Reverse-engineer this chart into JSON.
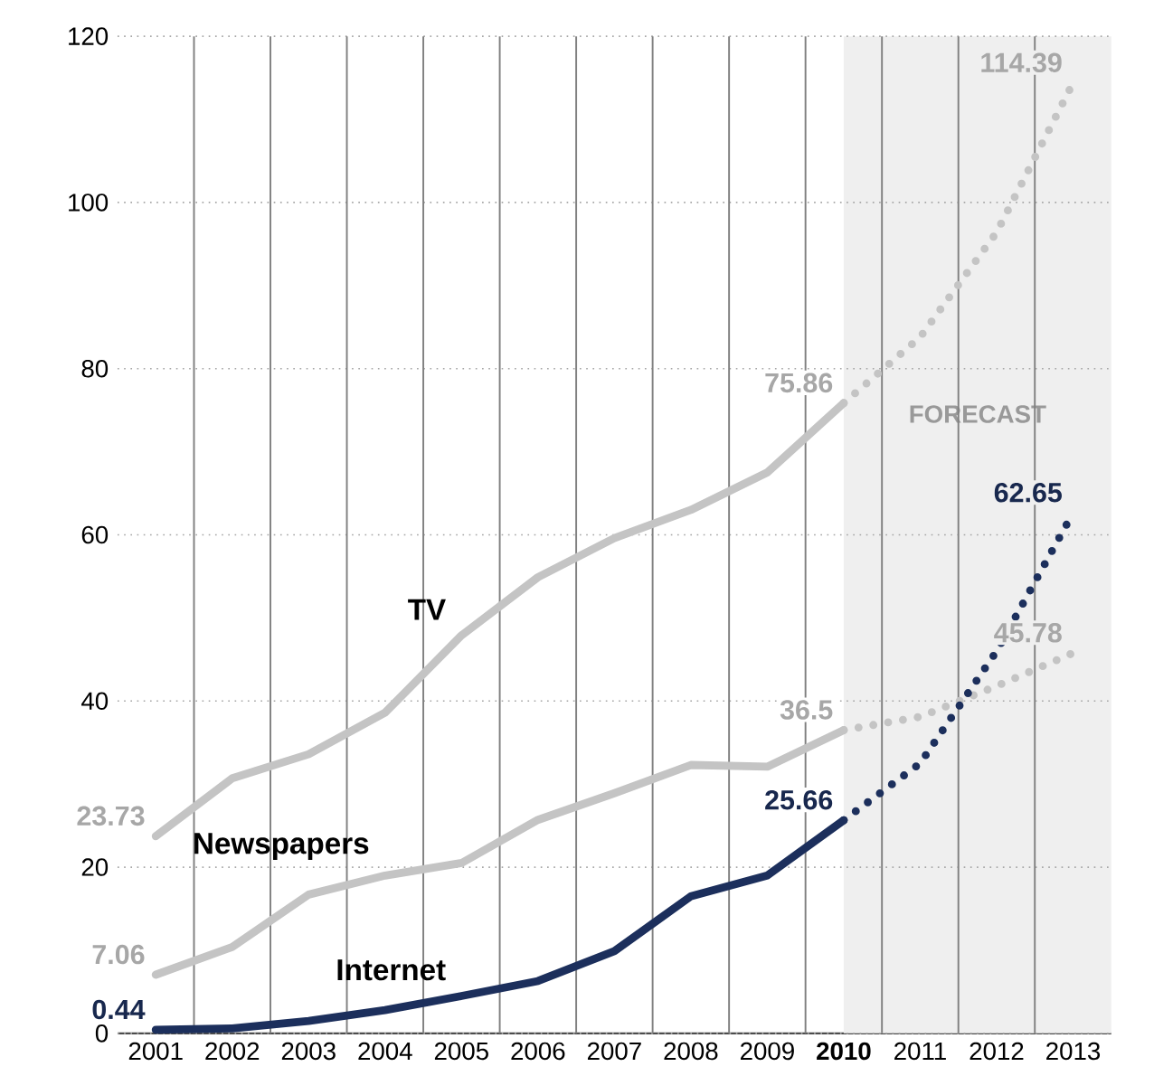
{
  "chart_data": {
    "type": "line",
    "x": [
      2001,
      2002,
      2003,
      2004,
      2005,
      2006,
      2007,
      2008,
      2009,
      2010,
      2011,
      2012,
      2013
    ],
    "xlim": [
      2000.5,
      2013.5
    ],
    "xticks": [
      2001,
      2002,
      2003,
      2004,
      2005,
      2006,
      2007,
      2008,
      2009,
      {
        "value": 2010,
        "label": "**2010**"
      },
      2011,
      2012,
      2013
    ],
    "ylim": [
      0,
      120
    ],
    "yticks": [
      0,
      20,
      40,
      60,
      80,
      100,
      120
    ],
    "grid": true,
    "bands": [
      {
        "axis": "x",
        "from": 2010,
        "to": 2013.5,
        "label": "FORECAST",
        "color": "#efefef"
      }
    ],
    "series": [
      {
        "name": "TV",
        "color": "#c4c4c4",
        "line_style": "solid",
        "values": [
          23.73,
          30.7,
          33.6,
          38.6,
          47.9,
          54.9,
          59.6,
          63,
          67.5,
          75.86,
          null,
          null,
          null
        ],
        "value_labels": [
          "23.73",
          null,
          null,
          null,
          null,
          null,
          null,
          null,
          null,
          "75.86",
          null,
          null,
          null
        ]
      },
      {
        "color": "#c4c4c4",
        "line_style": "dotted",
        "values": [
          null,
          null,
          null,
          null,
          null,
          null,
          null,
          null,
          null,
          75.86,
          83.8,
          96.4,
          114.39
        ],
        "value_labels": [
          null,
          null,
          null,
          null,
          null,
          null,
          null,
          null,
          null,
          null,
          null,
          null,
          "114.39"
        ]
      },
      {
        "name": "Newspapers",
        "color": "#c4c4c4",
        "line_style": "solid",
        "values": [
          7.06,
          10.4,
          16.7,
          19,
          20.5,
          25.7,
          28.9,
          32.3,
          32.1,
          36.5,
          null,
          null,
          null
        ],
        "value_labels": [
          "7.06",
          null,
          null,
          null,
          null,
          null,
          null,
          null,
          null,
          "36.5",
          null,
          null,
          null
        ]
      },
      {
        "color": "#c4c4c4",
        "line_style": "dotted",
        "values": [
          null,
          null,
          null,
          null,
          null,
          null,
          null,
          null,
          null,
          36.5,
          38.1,
          41.8,
          45.78
        ],
        "value_labels": [
          null,
          null,
          null,
          null,
          null,
          null,
          null,
          null,
          null,
          null,
          null,
          null,
          "45.78"
        ]
      },
      {
        "name": "Internet",
        "color": "#1c2f5c",
        "line_style": "solid",
        "values": [
          0.44,
          0.6,
          1.5,
          2.8,
          4.5,
          6.3,
          9.9,
          16.5,
          19,
          25.66,
          null,
          null,
          null
        ],
        "value_labels": [
          "0.44",
          null,
          null,
          null,
          null,
          null,
          null,
          null,
          null,
          "25.66",
          null,
          null,
          null
        ]
      },
      {
        "color": "#1c2f5c",
        "line_style": "dotted",
        "values": [
          null,
          null,
          null,
          null,
          null,
          null,
          null,
          null,
          null,
          25.66,
          32.5,
          46,
          62.65
        ],
        "value_labels": [
          null,
          null,
          null,
          null,
          null,
          null,
          null,
          null,
          null,
          null,
          null,
          null,
          "62.65"
        ]
      }
    ]
  }
}
